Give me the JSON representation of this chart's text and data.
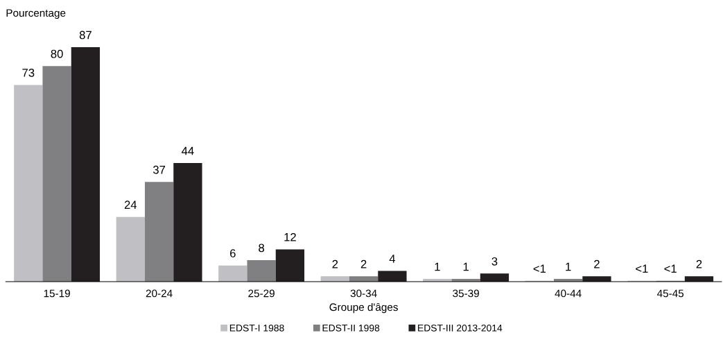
{
  "chart_data": {
    "type": "bar",
    "ylabel": "Pourcentage",
    "xlabel": "Groupe d'âges",
    "categories": [
      "15-19",
      "20-24",
      "25-29",
      "30-34",
      "35-39",
      "40-44",
      "45-45"
    ],
    "series": [
      {
        "name": "EDST-I 1988",
        "color": "#c0c0c4",
        "values": [
          73,
          24,
          6,
          2,
          1,
          0.3,
          0.3
        ],
        "value_labels": [
          "73",
          "24",
          "6",
          "2",
          "1",
          "<1",
          "<1"
        ]
      },
      {
        "name": "EDST-II 1998",
        "color": "#808083",
        "values": [
          80,
          37,
          8,
          2,
          1,
          1,
          0.3
        ],
        "value_labels": [
          "80",
          "37",
          "8",
          "2",
          "1",
          "1",
          "<1"
        ]
      },
      {
        "name": "EDST-III 2013-2014",
        "color": "#231f20",
        "values": [
          87,
          44,
          12,
          4,
          3,
          2,
          2
        ],
        "value_labels": [
          "87",
          "44",
          "12",
          "4",
          "3",
          "2",
          "2"
        ]
      }
    ],
    "legend": "bottom",
    "grid": false
  }
}
